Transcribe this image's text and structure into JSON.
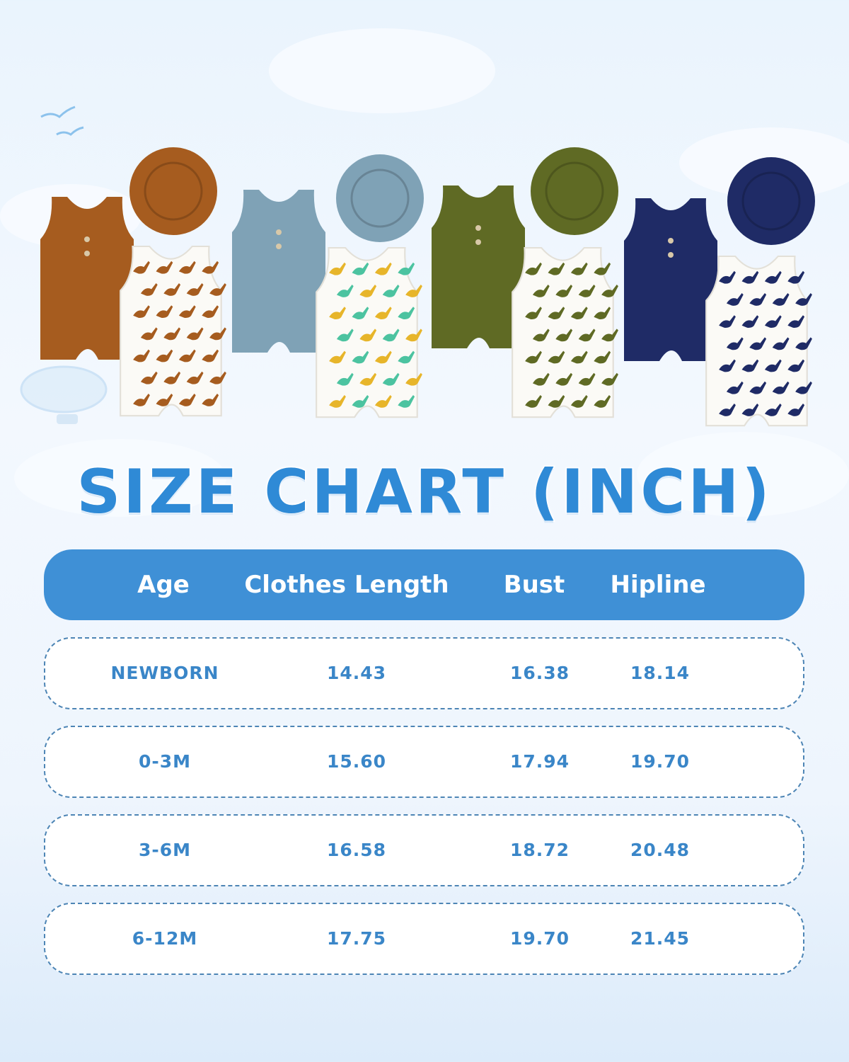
{
  "title": "SIZE CHART (INCH)",
  "colors": {
    "accent": "#3f90d6",
    "text": "#3a86c8",
    "romper_colors": [
      "#a65c1f",
      "#7fa2b6",
      "#5f6a24",
      "#1f2b66"
    ]
  },
  "table": {
    "headers": [
      "Age",
      "Clothes Length",
      "Bust",
      "Hipline"
    ],
    "rows": [
      [
        "NEWBORN",
        "14.43",
        "16.38",
        "18.14"
      ],
      [
        "0-3M",
        "15.60",
        "17.94",
        "19.70"
      ],
      [
        "3-6M",
        "16.58",
        "18.72",
        "20.48"
      ],
      [
        "6-12M",
        "17.75",
        "19.70",
        "21.45"
      ]
    ]
  },
  "products": [
    {
      "name": "brown romper set",
      "icon": "romper-with-hat-and-dino-print-romper"
    },
    {
      "name": "dusty blue romper set",
      "icon": "romper-with-hat-and-dino-print-romper"
    },
    {
      "name": "olive romper set",
      "icon": "romper-with-hat-and-dino-print-romper"
    },
    {
      "name": "navy romper set",
      "icon": "romper-with-hat-and-dino-print-romper"
    }
  ]
}
